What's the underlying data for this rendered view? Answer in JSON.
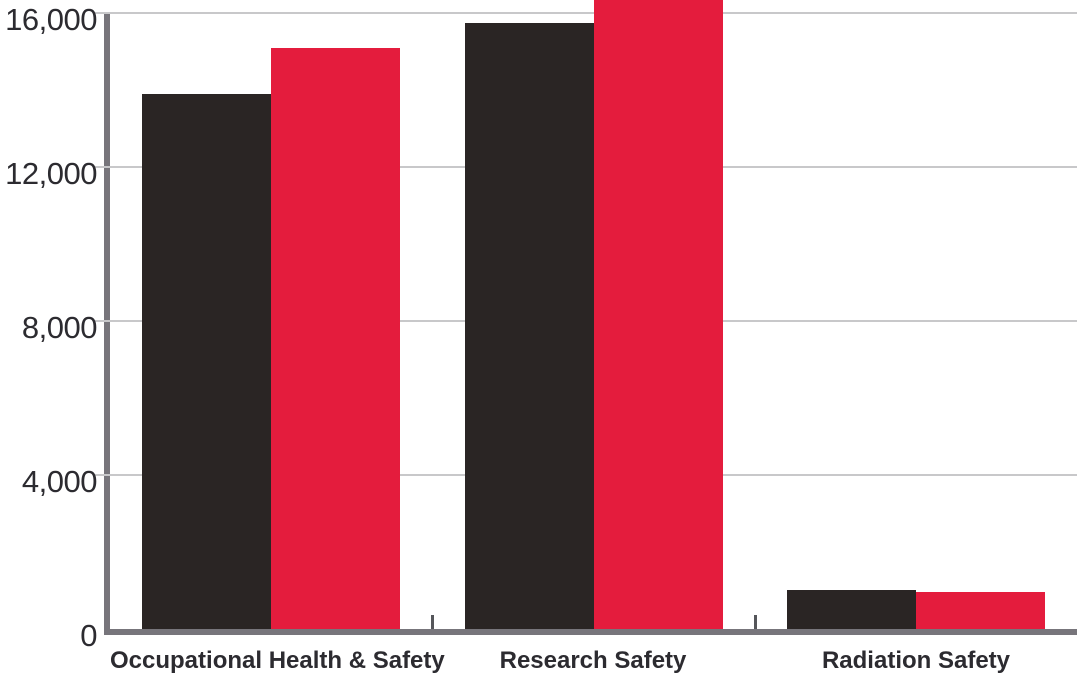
{
  "chart_data": {
    "type": "bar",
    "grouped": true,
    "title": "",
    "xlabel": "",
    "ylabel": "",
    "legend": "none",
    "grid": "horizontal",
    "categories": [
      "Occupational Health & Safety",
      "Research Safety",
      "Radiation Safety"
    ],
    "series": [
      {
        "name": "dark series",
        "color": "#2a2524",
        "values": [
          13900,
          15750,
          1000
        ]
      },
      {
        "name": "red series",
        "color": "#e41c3d",
        "values": [
          15100,
          16550,
          950
        ]
      }
    ],
    "annotations": [
      "red bar for Research Safety extends past the top edge of the image (clipped, value above 16,300)"
    ],
    "y_axis": {
      "ticks": [
        0,
        4000,
        8000,
        12000,
        16000
      ],
      "tick_labels": [
        "0",
        "4,000",
        "8,000",
        "12,000",
        "16,000"
      ],
      "ylim": [
        0,
        16338
      ]
    }
  },
  "colors": {
    "background": "#ffffff",
    "axis_line": "#77757b",
    "gridline": "#c8c8ca",
    "boundary_tick": "#55565a",
    "label_text": "#2c2b30",
    "bar_dark": "#2a2524",
    "bar_red": "#e41c3d"
  }
}
